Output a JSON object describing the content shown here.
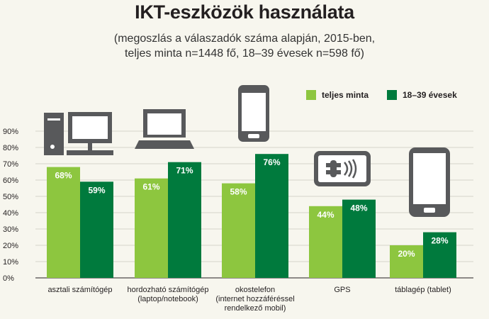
{
  "title": "IKT-eszközök használata",
  "subtitle_line1": "(megoszlás a válaszadók száma alapján, 2015-ben,",
  "subtitle_line2": "teljes minta n=1448 fő, 18–39 évesek n=598 fő)",
  "colors": {
    "light": "#8dc63f",
    "dark": "#007a3d",
    "icon": "#58595b",
    "grid": "#c9c8bf"
  },
  "chart_data": {
    "type": "bar",
    "categories": [
      [
        "asztali számítógép"
      ],
      [
        "hordozható számítógép",
        "(laptop/notebook)"
      ],
      [
        "okostelefon",
        "(internet hozzáféréssel",
        "rendelkező mobil)"
      ],
      [
        "GPS"
      ],
      [
        "táblagép (tablet)"
      ]
    ],
    "icons": [
      "desktop-computer-icon",
      "laptop-icon",
      "smartphone-icon",
      "gps-icon",
      "tablet-icon"
    ],
    "series": [
      {
        "name": "teljes minta",
        "values": [
          68,
          61,
          58,
          44,
          20
        ],
        "labels": [
          "68%",
          "61%",
          "58%",
          "44%",
          "20%"
        ]
      },
      {
        "name": "18–39 évesek",
        "values": [
          59,
          71,
          76,
          48,
          28
        ],
        "labels": [
          "59%",
          "71%",
          "76%",
          "48%",
          "28%"
        ]
      }
    ],
    "yticks": [
      "0%",
      "10%",
      "20%",
      "30%",
      "40%",
      "50%",
      "60%",
      "70%",
      "80%",
      "90%"
    ],
    "ylim": [
      0,
      90
    ],
    "grid": true,
    "legend_position": "top-right"
  }
}
